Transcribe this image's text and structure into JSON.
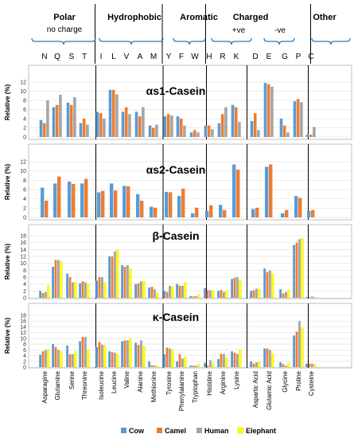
{
  "groups_header": [
    {
      "label": "Polar",
      "sublabel": "no charge"
    },
    {
      "label": "Hydrophobic",
      "sublabel": ""
    },
    {
      "label": "Aromatic",
      "sublabel": ""
    },
    {
      "label": "Charged",
      "sublabel": ""
    },
    {
      "label": "Other",
      "sublabel": ""
    }
  ],
  "charge_labels": [
    "+ve",
    "-ve"
  ],
  "amino_codes": [
    "N",
    "Q",
    "S",
    "T",
    "I",
    "L",
    "V",
    "A",
    "M",
    "Y",
    "F",
    "W",
    "H",
    "R",
    "K",
    "D",
    "E",
    "G",
    "P",
    "C"
  ],
  "amino_names": [
    "Asparagine",
    "Glutamine",
    "Serine",
    "Threonine",
    "Isoleucine",
    "Leucine",
    "Valine",
    "Alanine",
    "Methionine",
    "Tyrosine",
    "Phenylalanine",
    "Tryptophan",
    "Histidine",
    "Arginine",
    "Lysine",
    "Aspartic Acid",
    "Glutamic Acid",
    "Glycine",
    "Proline",
    "Cysteine"
  ],
  "legend": [
    "Cow",
    "Camel",
    "Human",
    "Elephant"
  ],
  "colors": {
    "Cow": "#5b9bd5",
    "Camel": "#ed7d31",
    "Human": "#a5a5a5",
    "Elephant": "#ffff00",
    "group_header": "#2e75b6"
  },
  "chart_data": [
    {
      "type": "bar",
      "title": "αs1-Casein",
      "ylabel": "Relative (%)",
      "ylim": [
        0,
        12
      ],
      "yticks": [
        0,
        2,
        4,
        6,
        8,
        10,
        12
      ],
      "categories": [
        "N",
        "Q",
        "S",
        "T",
        "I",
        "L",
        "V",
        "A",
        "M",
        "Y",
        "F",
        "W",
        "H",
        "R",
        "K",
        "D",
        "E",
        "G",
        "P",
        "C"
      ],
      "series": [
        {
          "name": "Cow",
          "values": [
            3.7,
            6.5,
            7.5,
            3.0,
            5.5,
            10.3,
            5.5,
            5.5,
            2.5,
            4.5,
            4.5,
            1.0,
            2.5,
            3.0,
            7.0,
            3.5,
            11.8,
            4.0,
            7.8,
            0.5
          ]
        },
        {
          "name": "Camel",
          "values": [
            3.0,
            7.0,
            7.0,
            4.0,
            5.2,
            10.3,
            6.5,
            4.5,
            2.0,
            5.0,
            4.0,
            1.5,
            2.5,
            5.0,
            6.5,
            5.2,
            11.5,
            2.5,
            8.3,
            0.5
          ]
        },
        {
          "name": "Human",
          "values": [
            8.0,
            9.2,
            8.7,
            2.7,
            4.0,
            9.3,
            5.0,
            6.5,
            2.7,
            4.7,
            2.5,
            1.0,
            1.7,
            6.5,
            3.3,
            1.5,
            11.0,
            1.0,
            7.6,
            2.2
          ]
        }
      ]
    },
    {
      "type": "bar",
      "title": "αs2-Casein",
      "ylabel": "Relative (%)",
      "ylim": [
        0,
        12
      ],
      "yticks": [
        0,
        2,
        4,
        6,
        8,
        10,
        12
      ],
      "categories": [
        "N",
        "Q",
        "S",
        "T",
        "I",
        "L",
        "V",
        "A",
        "M",
        "Y",
        "F",
        "W",
        "H",
        "R",
        "K",
        "D",
        "E",
        "G",
        "P",
        "C"
      ],
      "series": [
        {
          "name": "Cow",
          "values": [
            6.4,
            7.3,
            7.7,
            7.3,
            5.4,
            7.3,
            6.8,
            5.0,
            2.3,
            5.5,
            4.6,
            0.9,
            1.4,
            2.7,
            11.4,
            1.8,
            10.9,
            0.9,
            4.6,
            1.4
          ]
        },
        {
          "name": "Camel",
          "values": [
            3.6,
            8.8,
            7.2,
            8.3,
            5.7,
            5.8,
            6.7,
            3.6,
            2.1,
            5.4,
            6.2,
            2.1,
            2.6,
            1.6,
            10.3,
            2.1,
            11.4,
            1.6,
            4.2,
            1.6
          ]
        }
      ]
    },
    {
      "type": "bar",
      "title": "β-Casein",
      "ylabel": "Relative (%)",
      "ylim": [
        0,
        18
      ],
      "yticks": [
        0,
        2,
        4,
        6,
        8,
        10,
        12,
        14,
        16,
        18
      ],
      "categories": [
        "N",
        "Q",
        "S",
        "T",
        "I",
        "L",
        "V",
        "A",
        "M",
        "Y",
        "F",
        "W",
        "H",
        "R",
        "K",
        "D",
        "E",
        "G",
        "P",
        "C"
      ],
      "series": [
        {
          "name": "Cow",
          "values": [
            2.0,
            9.0,
            7.0,
            4.2,
            5.0,
            12.0,
            9.5,
            4.0,
            3.0,
            2.0,
            4.0,
            0.5,
            2.8,
            2.0,
            5.5,
            2.0,
            8.5,
            2.5,
            15.3,
            0.2
          ]
        },
        {
          "name": "Camel",
          "values": [
            1.4,
            11.0,
            6.0,
            4.8,
            6.0,
            12.0,
            9.0,
            4.2,
            3.2,
            1.7,
            3.5,
            0.4,
            2.2,
            2.3,
            5.8,
            2.2,
            7.5,
            1.3,
            16.0,
            0.2
          ]
        },
        {
          "name": "Human",
          "values": [
            1.7,
            11.0,
            4.5,
            4.5,
            6.0,
            13.5,
            9.5,
            4.8,
            2.5,
            3.5,
            3.5,
            0.5,
            2.2,
            1.7,
            6.0,
            2.7,
            8.0,
            1.7,
            17.0,
            0.4
          ]
        },
        {
          "name": "Elephant",
          "values": [
            3.5,
            10.5,
            4.5,
            4.0,
            4.5,
            14.0,
            8.5,
            4.8,
            1.5,
            3.2,
            4.5,
            1.0,
            2.0,
            2.0,
            5.0,
            2.5,
            7.0,
            2.3,
            17.3,
            0.2
          ]
        }
      ]
    },
    {
      "type": "bar",
      "title": "κ-Casein",
      "ylabel": "Relative (%)",
      "ylim": [
        0,
        18
      ],
      "yticks": [
        0,
        2,
        4,
        6,
        8,
        10,
        12,
        14,
        16,
        18
      ],
      "categories": [
        "N",
        "Q",
        "S",
        "T",
        "I",
        "L",
        "V",
        "A",
        "M",
        "Y",
        "F",
        "W",
        "H",
        "R",
        "K",
        "D",
        "E",
        "G",
        "P",
        "C"
      ],
      "series": [
        {
          "name": "Cow",
          "values": [
            4.3,
            8.0,
            7.5,
            9.0,
            7.0,
            5.5,
            9.0,
            8.5,
            2.0,
            4.5,
            2.0,
            0.5,
            1.5,
            2.8,
            5.5,
            2.0,
            6.5,
            1.7,
            11.0,
            1.2
          ]
        },
        {
          "name": "Camel",
          "values": [
            5.5,
            7.0,
            4.5,
            10.5,
            8.7,
            5.2,
            9.3,
            7.7,
            0.7,
            6.8,
            4.5,
            0.5,
            0.5,
            4.6,
            5.0,
            1.2,
            6.5,
            1.0,
            12.3,
            1.2
          ]
        },
        {
          "name": "Human",
          "values": [
            6.0,
            6.0,
            4.5,
            10.5,
            7.8,
            5.0,
            9.3,
            9.3,
            0.5,
            6.5,
            3.0,
            0.5,
            2.4,
            4.6,
            4.6,
            1.7,
            6.0,
            0.5,
            16.0,
            1.2
          ]
        },
        {
          "name": "Elephant",
          "values": [
            6.0,
            5.5,
            5.5,
            6.0,
            7.5,
            4.5,
            10.0,
            7.3,
            0.5,
            6.2,
            3.5,
            1.0,
            1.2,
            3.3,
            6.0,
            2.0,
            4.7,
            1.4,
            13.7,
            1.0
          ]
        }
      ]
    }
  ]
}
